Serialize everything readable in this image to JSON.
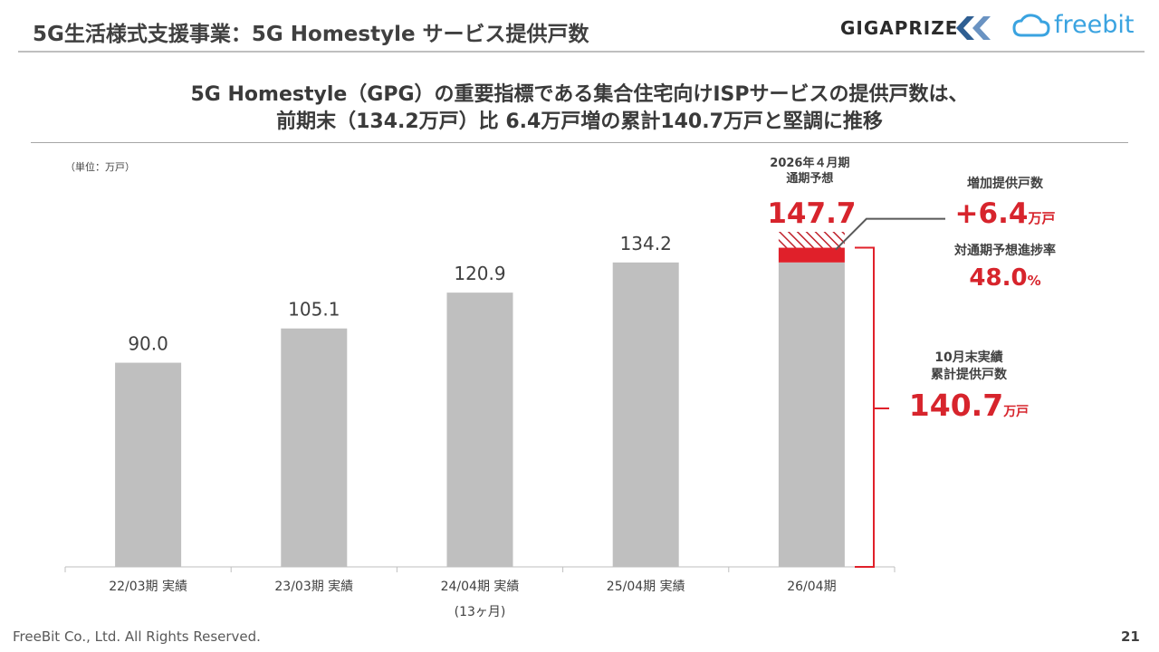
{
  "header": {
    "title": "5G生活様式支援事業：5G Homestyle サービス提供戸数",
    "logo_giga": "GIGAPRIZE",
    "logo_freebit": "freebit"
  },
  "headline": {
    "line1": "5G Homestyle（GPG）の重要指標である集合住宅向けISPサービスの提供戸数は、",
    "line2": "前期末（134.2万戸）比 6.4万戸増の累計140.7万戸と堅調に推移"
  },
  "unit_label": "（単位：万戸）",
  "chart_data": {
    "type": "bar",
    "categories": [
      "22/03期 実績",
      "23/03期 実績",
      "24/04期 実績",
      "25/04期 実績",
      "26/04期"
    ],
    "category_notes": [
      "",
      "",
      "(13ヶ月)",
      "",
      ""
    ],
    "values": [
      90.0,
      105.1,
      120.9,
      134.2,
      134.2
    ],
    "value_labels": [
      "90.0",
      "105.1",
      "120.9",
      "134.2",
      ""
    ],
    "stack_increase": {
      "category": "26/04期",
      "value": 6.5
    },
    "forecast": {
      "category": "26/04期",
      "value": 147.7,
      "label": "147.7",
      "heading": "2026年４月期\n通期予想"
    },
    "ylim": [
      0,
      147.7
    ],
    "colors": {
      "bar": "#bfbfbf",
      "accent": "#e0202a",
      "text": "#404040"
    }
  },
  "annotations": {
    "increase_title": "増加提供戸数",
    "increase_value": "+6.4",
    "increase_unit": "万戸",
    "progress_title": "対通期予想進捗率",
    "progress_value": "48.0",
    "progress_unit": "%",
    "cumulative_title_line1": "10月末実績",
    "cumulative_title_line2": "累計提供戸数",
    "cumulative_value": "140.7",
    "cumulative_unit": "万戸"
  },
  "footer": {
    "copyright": "FreeBit Co., Ltd. All Rights Reserved.",
    "page": "21"
  }
}
